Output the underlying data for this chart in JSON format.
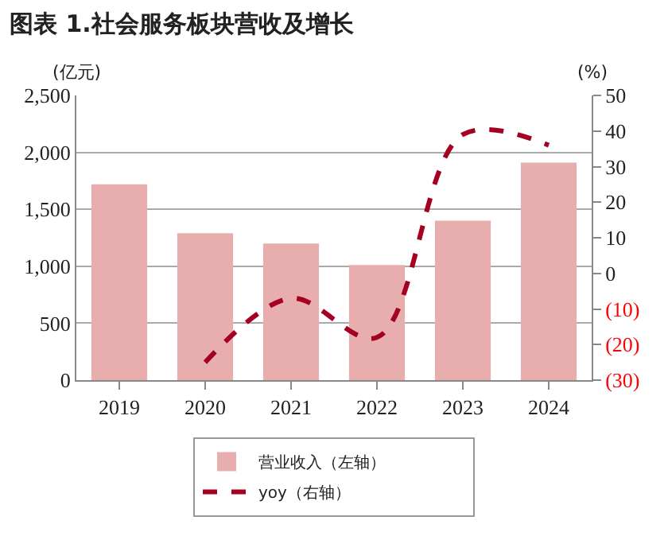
{
  "chart_data": {
    "type": "bar",
    "title": "图表 1.社会服务板块营收及增长",
    "ylabel": "(亿元)",
    "y2label": "(%)",
    "categories": [
      "2019",
      "2020",
      "2021",
      "2022",
      "2023",
      "2024"
    ],
    "series": [
      {
        "name": "营业收入（左轴）",
        "color": "#e8aeae",
        "values": [
          1720,
          1290,
          1200,
          1010,
          1400,
          1910
        ]
      },
      {
        "name": "yoy（右轴）",
        "type": "line",
        "axis": "y2",
        "color": "#a50021",
        "line_style": "dashed",
        "marker": "none",
        "values": [
          null,
          -25,
          -7,
          -18,
          39,
          36
        ]
      }
    ],
    "ylim": [
      0,
      2500
    ],
    "yticks": [
      {
        "value": 0,
        "label": "0"
      },
      {
        "value": 500,
        "label": "500"
      },
      {
        "value": 1000,
        "label": "1,000"
      },
      {
        "value": 1500,
        "label": "1,500"
      },
      {
        "value": 2000,
        "label": "2,000"
      },
      {
        "value": 2500,
        "label": "2,500"
      }
    ],
    "y2lim": [
      -30,
      50
    ],
    "y2ticks": [
      {
        "value": -30,
        "label": "(30)"
      },
      {
        "value": -20,
        "label": "(20)"
      },
      {
        "value": -10,
        "label": "(10)"
      },
      0,
      10,
      20,
      30,
      40,
      50
    ],
    "grid": "y",
    "legend": "bottom"
  }
}
